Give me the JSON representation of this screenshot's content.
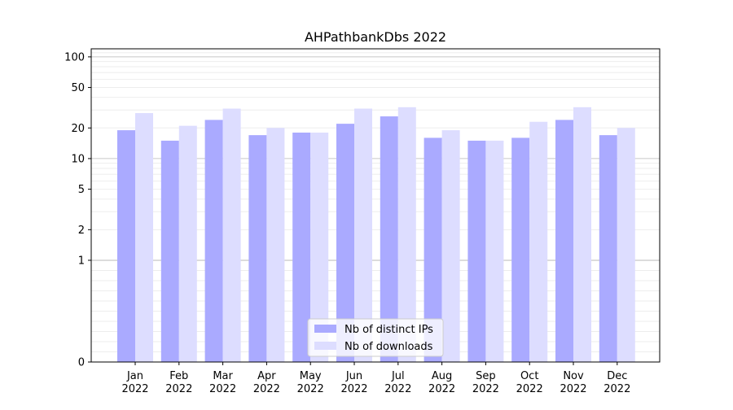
{
  "chart_data": {
    "type": "bar",
    "title": "AHPathbankDbs 2022",
    "xlabel": "",
    "ylabel": "",
    "y_scale": "symlog",
    "ylim": [
      0,
      120
    ],
    "y_ticks": [
      0,
      1,
      2,
      5,
      10,
      20,
      50,
      100
    ],
    "y_tick_labels": [
      "0",
      "1",
      "2",
      "5",
      "10",
      "20",
      "50",
      "100"
    ],
    "categories": [
      [
        "Jan",
        "2022"
      ],
      [
        "Feb",
        "2022"
      ],
      [
        "Mar",
        "2022"
      ],
      [
        "Apr",
        "2022"
      ],
      [
        "May",
        "2022"
      ],
      [
        "Jun",
        "2022"
      ],
      [
        "Jul",
        "2022"
      ],
      [
        "Aug",
        "2022"
      ],
      [
        "Sep",
        "2022"
      ],
      [
        "Oct",
        "2022"
      ],
      [
        "Nov",
        "2022"
      ],
      [
        "Dec",
        "2022"
      ]
    ],
    "series": [
      {
        "name": "Nb of distinct IPs",
        "color": "#aaaaff",
        "values": [
          19,
          15,
          24,
          17,
          18,
          22,
          26,
          16,
          15,
          16,
          24,
          17
        ]
      },
      {
        "name": "Nb of downloads",
        "color": "#ddddff",
        "values": [
          28,
          21,
          31,
          20,
          18,
          31,
          32,
          19,
          15,
          23,
          32,
          20
        ]
      }
    ],
    "legend_position": "bottom-center",
    "grid": "horizontal"
  }
}
